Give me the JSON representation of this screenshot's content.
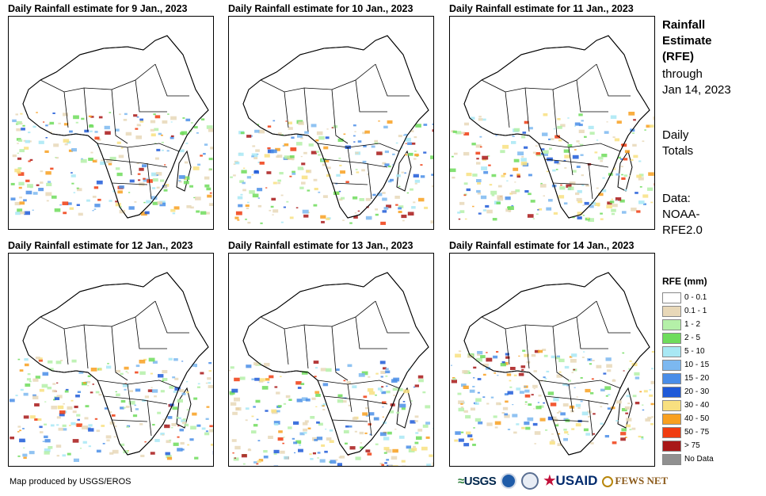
{
  "panels": [
    {
      "title": "Daily Rainfall estimate for 9 Jan., 2023"
    },
    {
      "title": "Daily Rainfall estimate for 10 Jan., 2023"
    },
    {
      "title": "Daily Rainfall estimate for 11 Jan., 2023"
    },
    {
      "title": "Daily Rainfall estimate for 12 Jan., 2023"
    },
    {
      "title": "Daily Rainfall estimate for 13 Jan., 2023"
    },
    {
      "title": "Daily Rainfall estimate for 14 Jan., 2023"
    }
  ],
  "sidebar": {
    "title_line1": "Rainfall",
    "title_line2": "Estimate",
    "title_line3": "(RFE)",
    "through": "through",
    "date": "Jan 14, 2023",
    "daily": "Daily",
    "totals": "Totals",
    "data_label": "Data:",
    "data_src1": "NOAA-",
    "data_src2": "RFE2.0"
  },
  "legend": {
    "title": "RFE (mm)",
    "items": [
      {
        "label": "0 - 0.1",
        "color": "#ffffff"
      },
      {
        "label": "0.1 - 1",
        "color": "#e8d8b8"
      },
      {
        "label": "1 - 2",
        "color": "#b4f0a8"
      },
      {
        "label": "2 - 5",
        "color": "#6edc5c"
      },
      {
        "label": "5 - 10",
        "color": "#a8e8f4"
      },
      {
        "label": "10 - 15",
        "color": "#7cb8f0"
      },
      {
        "label": "15 - 20",
        "color": "#4a8ee8"
      },
      {
        "label": "20 - 30",
        "color": "#1f5ad8"
      },
      {
        "label": "30 - 40",
        "color": "#f8e080"
      },
      {
        "label": "40 - 50",
        "color": "#f8a020"
      },
      {
        "label": "50 - 75",
        "color": "#f03c10"
      },
      {
        "label": "> 75",
        "color": "#a81818"
      },
      {
        "label": "No Data",
        "color": "#909090"
      }
    ]
  },
  "footer": {
    "credit": "Map produced by USGS/EROS",
    "logo_usgs": "USGS",
    "logo_usaid": "USAID",
    "logo_fews": "FEWS NET"
  }
}
